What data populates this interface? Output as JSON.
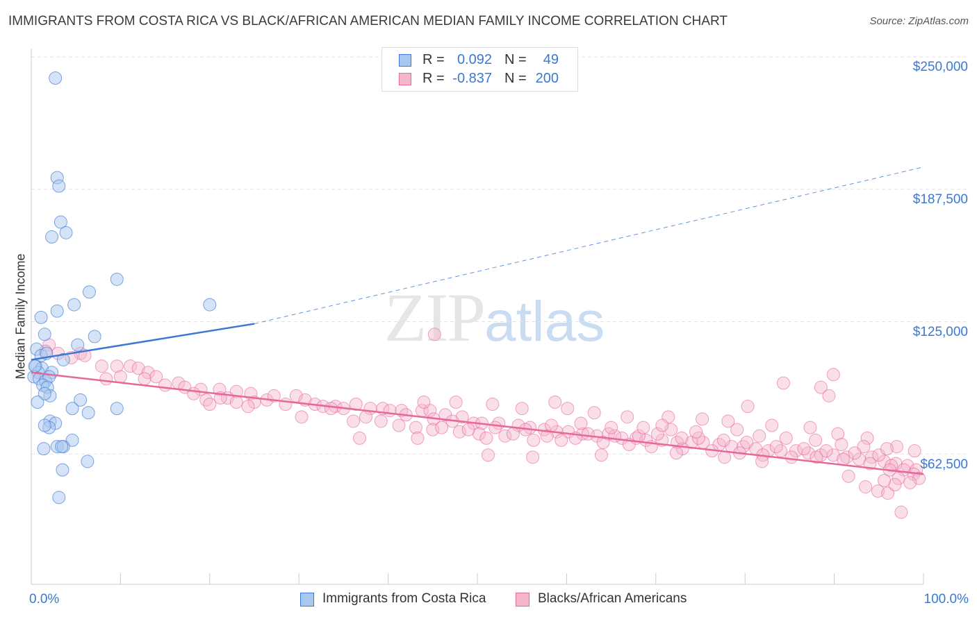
{
  "title": "IMMIGRANTS FROM COSTA RICA VS BLACK/AFRICAN AMERICAN MEDIAN FAMILY INCOME CORRELATION CHART",
  "source": "Source: ZipAtlas.com",
  "watermark": {
    "part1": "ZIP",
    "part2": "atlas"
  },
  "legend_top": {
    "rows": [
      {
        "r_label": "R =",
        "r_value": "0.092",
        "n_label": "N =",
        "n_value": "49"
      },
      {
        "r_label": "R =",
        "r_value": "-0.837",
        "n_label": "N =",
        "n_value": "200"
      }
    ]
  },
  "colors": {
    "blue": "#3a78d4",
    "blue_fill": "#a9c8f0",
    "pink": "#e6679a",
    "pink_fill": "#f4b6cb",
    "grid": "#e2e2e2"
  },
  "chart_data": {
    "type": "scatter",
    "title": "IMMIGRANTS FROM COSTA RICA VS BLACK/AFRICAN AMERICAN MEDIAN FAMILY INCOME CORRELATION CHART",
    "ylabel": "Median Family Income",
    "xlim": [
      0,
      100
    ],
    "ylim": [
      0,
      265000
    ],
    "x_tick_labels": [
      "0.0%",
      "100.0%"
    ],
    "y_ticks": [
      {
        "value": 62500,
        "label": "$62,500"
      },
      {
        "value": 125000,
        "label": "$125,000"
      },
      {
        "value": 187500,
        "label": "$187,500"
      },
      {
        "value": 250000,
        "label": "$250,000"
      }
    ],
    "grid": "horizontal dashed",
    "legend_position": "top-center and bottom",
    "series": [
      {
        "name": "Immigrants from Costa Rica",
        "color": "#3a78d4",
        "R": 0.092,
        "N": 49,
        "trend": {
          "solid": [
            [
              0.0,
              107000
            ],
            [
              25.0,
              124000
            ]
          ],
          "dashed": [
            [
              25.0,
              124000
            ],
            [
              100.0,
              198000
            ]
          ]
        },
        "points": [
          [
            2.7,
            240000
          ],
          [
            2.9,
            193000
          ],
          [
            3.1,
            189000
          ],
          [
            3.3,
            172000
          ],
          [
            3.9,
            167000
          ],
          [
            2.3,
            165000
          ],
          [
            9.6,
            145000
          ],
          [
            6.5,
            139000
          ],
          [
            4.8,
            133000
          ],
          [
            20.0,
            133000
          ],
          [
            2.9,
            130000
          ],
          [
            1.1,
            127000
          ],
          [
            1.5,
            119000
          ],
          [
            7.1,
            118000
          ],
          [
            5.2,
            114000
          ],
          [
            0.6,
            112000
          ],
          [
            1.1,
            109000
          ],
          [
            1.7,
            110000
          ],
          [
            3.6,
            107000
          ],
          [
            0.5,
            104000
          ],
          [
            1.2,
            103000
          ],
          [
            0.8,
            101000
          ],
          [
            2.3,
            101000
          ],
          [
            0.3,
            99000
          ],
          [
            0.9,
            98000
          ],
          [
            1.6,
            97000
          ],
          [
            2.0,
            99000
          ],
          [
            1.3,
            95000
          ],
          [
            1.8,
            94000
          ],
          [
            2.1,
            90000
          ],
          [
            1.5,
            91000
          ],
          [
            0.7,
            87000
          ],
          [
            5.5,
            88000
          ],
          [
            4.6,
            84000
          ],
          [
            6.4,
            82000
          ],
          [
            9.6,
            84000
          ],
          [
            2.1,
            78000
          ],
          [
            2.7,
            77000
          ],
          [
            2.0,
            75000
          ],
          [
            1.5,
            76000
          ],
          [
            4.6,
            69000
          ],
          [
            2.9,
            66000
          ],
          [
            3.6,
            66000
          ],
          [
            1.4,
            65000
          ],
          [
            3.4,
            66000
          ],
          [
            6.3,
            59000
          ],
          [
            3.5,
            55000
          ],
          [
            3.1,
            42000
          ],
          [
            0.4,
            104000
          ]
        ]
      },
      {
        "name": "Blacks/African Americans",
        "color": "#e6679a",
        "R": -0.837,
        "N": 200,
        "trend": [
          [
            0.0,
            101000
          ],
          [
            100.0,
            53000
          ]
        ],
        "points": [
          [
            2.0,
            114000
          ],
          [
            1.6,
            111000
          ],
          [
            3.0,
            110000
          ],
          [
            5.5,
            110000
          ],
          [
            4.5,
            108000
          ],
          [
            6.0,
            109000
          ],
          [
            7.9,
            104000
          ],
          [
            11.1,
            104000
          ],
          [
            9.6,
            104000
          ],
          [
            12.0,
            103000
          ],
          [
            13.1,
            101000
          ],
          [
            14.0,
            99000
          ],
          [
            12.7,
            98000
          ],
          [
            8.4,
            98000
          ],
          [
            10.0,
            99000
          ],
          [
            16.5,
            96000
          ],
          [
            15.0,
            95000
          ],
          [
            17.2,
            94000
          ],
          [
            19.0,
            93000
          ],
          [
            21.1,
            93000
          ],
          [
            18.2,
            91000
          ],
          [
            23.0,
            92000
          ],
          [
            24.6,
            91000
          ],
          [
            22.0,
            89000
          ],
          [
            19.6,
            88000
          ],
          [
            21.2,
            89000
          ],
          [
            26.4,
            88000
          ],
          [
            27.2,
            90000
          ],
          [
            29.7,
            90000
          ],
          [
            28.5,
            86000
          ],
          [
            25.0,
            87000
          ],
          [
            30.7,
            88000
          ],
          [
            31.8,
            86000
          ],
          [
            32.7,
            85000
          ],
          [
            34.1,
            85000
          ],
          [
            36.4,
            86000
          ],
          [
            35.0,
            84000
          ],
          [
            38.0,
            84000
          ],
          [
            33.6,
            84000
          ],
          [
            23.0,
            87000
          ],
          [
            20.0,
            86000
          ],
          [
            24.3,
            85000
          ],
          [
            39.4,
            84000
          ],
          [
            40.2,
            83000
          ],
          [
            41.5,
            83000
          ],
          [
            43.8,
            83000
          ],
          [
            44.7,
            83000
          ],
          [
            48.3,
            80000
          ],
          [
            42.0,
            81000
          ],
          [
            45.1,
            79000
          ],
          [
            46.4,
            81000
          ],
          [
            37.5,
            80000
          ],
          [
            36.1,
            78000
          ],
          [
            39.2,
            78000
          ],
          [
            47.2,
            78000
          ],
          [
            49.6,
            77000
          ],
          [
            50.5,
            77000
          ],
          [
            52.4,
            77000
          ],
          [
            54.6,
            76000
          ],
          [
            55.9,
            75000
          ],
          [
            57.5,
            74000
          ],
          [
            58.9,
            73000
          ],
          [
            60.2,
            73000
          ],
          [
            61.8,
            72000
          ],
          [
            63.4,
            71000
          ],
          [
            64.7,
            72000
          ],
          [
            66.2,
            70000
          ],
          [
            67.8,
            70000
          ],
          [
            68.9,
            69000
          ],
          [
            70.7,
            69000
          ],
          [
            72.4,
            68000
          ],
          [
            74.0,
            68000
          ],
          [
            75.3,
            68000
          ],
          [
            77.1,
            67000
          ],
          [
            78.5,
            66000
          ],
          [
            79.8,
            66000
          ],
          [
            81.2,
            65000
          ],
          [
            82.6,
            64000
          ],
          [
            84.0,
            64000
          ],
          [
            85.7,
            64000
          ],
          [
            87.1,
            63000
          ],
          [
            88.5,
            62000
          ],
          [
            89.9,
            62000
          ],
          [
            91.4,
            61000
          ],
          [
            92.8,
            60000
          ],
          [
            94.2,
            61000
          ],
          [
            95.6,
            59000
          ],
          [
            96.9,
            58000
          ],
          [
            98.2,
            57000
          ],
          [
            99.2,
            55000
          ],
          [
            44.0,
            87000
          ],
          [
            47.6,
            87000
          ],
          [
            51.7,
            86000
          ],
          [
            55.0,
            84000
          ],
          [
            60.1,
            84000
          ],
          [
            63.1,
            82000
          ],
          [
            66.8,
            80000
          ],
          [
            71.4,
            80000
          ],
          [
            75.2,
            79000
          ],
          [
            78.1,
            78000
          ],
          [
            83.0,
            76000
          ],
          [
            87.3,
            75000
          ],
          [
            90.4,
            72000
          ],
          [
            93.7,
            70000
          ],
          [
            97.0,
            66000
          ],
          [
            50.2,
            72000
          ],
          [
            53.1,
            71000
          ],
          [
            56.3,
            69000
          ],
          [
            59.4,
            69000
          ],
          [
            61.0,
            70000
          ],
          [
            64.1,
            68000
          ],
          [
            67.0,
            67000
          ],
          [
            69.5,
            66000
          ],
          [
            73.0,
            65000
          ],
          [
            76.3,
            64000
          ],
          [
            79.4,
            63000
          ],
          [
            82.0,
            62000
          ],
          [
            85.2,
            61000
          ],
          [
            88.0,
            61000
          ],
          [
            91.0,
            60000
          ],
          [
            94.0,
            58000
          ],
          [
            96.4,
            57000
          ],
          [
            97.8,
            55000
          ],
          [
            98.9,
            53000
          ],
          [
            99.5,
            51000
          ],
          [
            45.0,
            74000
          ],
          [
            48.0,
            73000
          ],
          [
            51.0,
            70000
          ],
          [
            54.0,
            72000
          ],
          [
            57.8,
            71000
          ],
          [
            62.4,
            72000
          ],
          [
            65.4,
            71000
          ],
          [
            68.1,
            71000
          ],
          [
            70.2,
            72000
          ],
          [
            72.9,
            70000
          ],
          [
            74.8,
            70000
          ],
          [
            77.6,
            69000
          ],
          [
            80.2,
            68000
          ],
          [
            83.5,
            66000
          ],
          [
            86.6,
            65000
          ],
          [
            89.1,
            64000
          ],
          [
            92.3,
            63000
          ],
          [
            95.0,
            62000
          ],
          [
            96.2,
            55000
          ],
          [
            97.2,
            51000
          ],
          [
            41.2,
            76000
          ],
          [
            43.1,
            75000
          ],
          [
            46.0,
            75000
          ],
          [
            49.0,
            74000
          ],
          [
            52.0,
            75000
          ],
          [
            55.4,
            74000
          ],
          [
            58.3,
            76000
          ],
          [
            61.6,
            77000
          ],
          [
            65.0,
            75000
          ],
          [
            68.6,
            75000
          ],
          [
            71.7,
            74000
          ],
          [
            74.5,
            73000
          ],
          [
            79.1,
            74000
          ],
          [
            81.6,
            71000
          ],
          [
            84.6,
            70000
          ],
          [
            87.9,
            69000
          ],
          [
            90.8,
            67000
          ],
          [
            93.3,
            66000
          ],
          [
            95.9,
            65000
          ],
          [
            99.0,
            64000
          ],
          [
            89.9,
            100000
          ],
          [
            84.3,
            96000
          ],
          [
            88.5,
            94000
          ],
          [
            89.4,
            90000
          ],
          [
            80.3,
            85000
          ],
          [
            70.7,
            76000
          ],
          [
            58.7,
            87000
          ],
          [
            51.2,
            62000
          ],
          [
            36.8,
            70000
          ],
          [
            43.3,
            70000
          ],
          [
            56.2,
            61000
          ],
          [
            63.9,
            62000
          ],
          [
            72.3,
            63000
          ],
          [
            77.7,
            61000
          ],
          [
            81.9,
            59000
          ],
          [
            93.5,
            47000
          ],
          [
            94.9,
            45000
          ],
          [
            96.0,
            44000
          ],
          [
            96.8,
            48000
          ],
          [
            97.5,
            35000
          ],
          [
            95.6,
            50000
          ],
          [
            98.5,
            49000
          ],
          [
            91.6,
            52000
          ],
          [
            45.2,
            119000
          ],
          [
            30.3,
            80000
          ]
        ]
      }
    ]
  },
  "y_axis_labels": [
    "$250,000",
    "$187,500",
    "$125,000",
    "$62,500"
  ],
  "x_axis_labels": {
    "left": "0.0%",
    "right": "100.0%"
  },
  "y_axis_title": "Median Family Income",
  "legend_bottom": [
    {
      "label": "Immigrants from Costa Rica"
    },
    {
      "label": "Blacks/African Americans"
    }
  ]
}
